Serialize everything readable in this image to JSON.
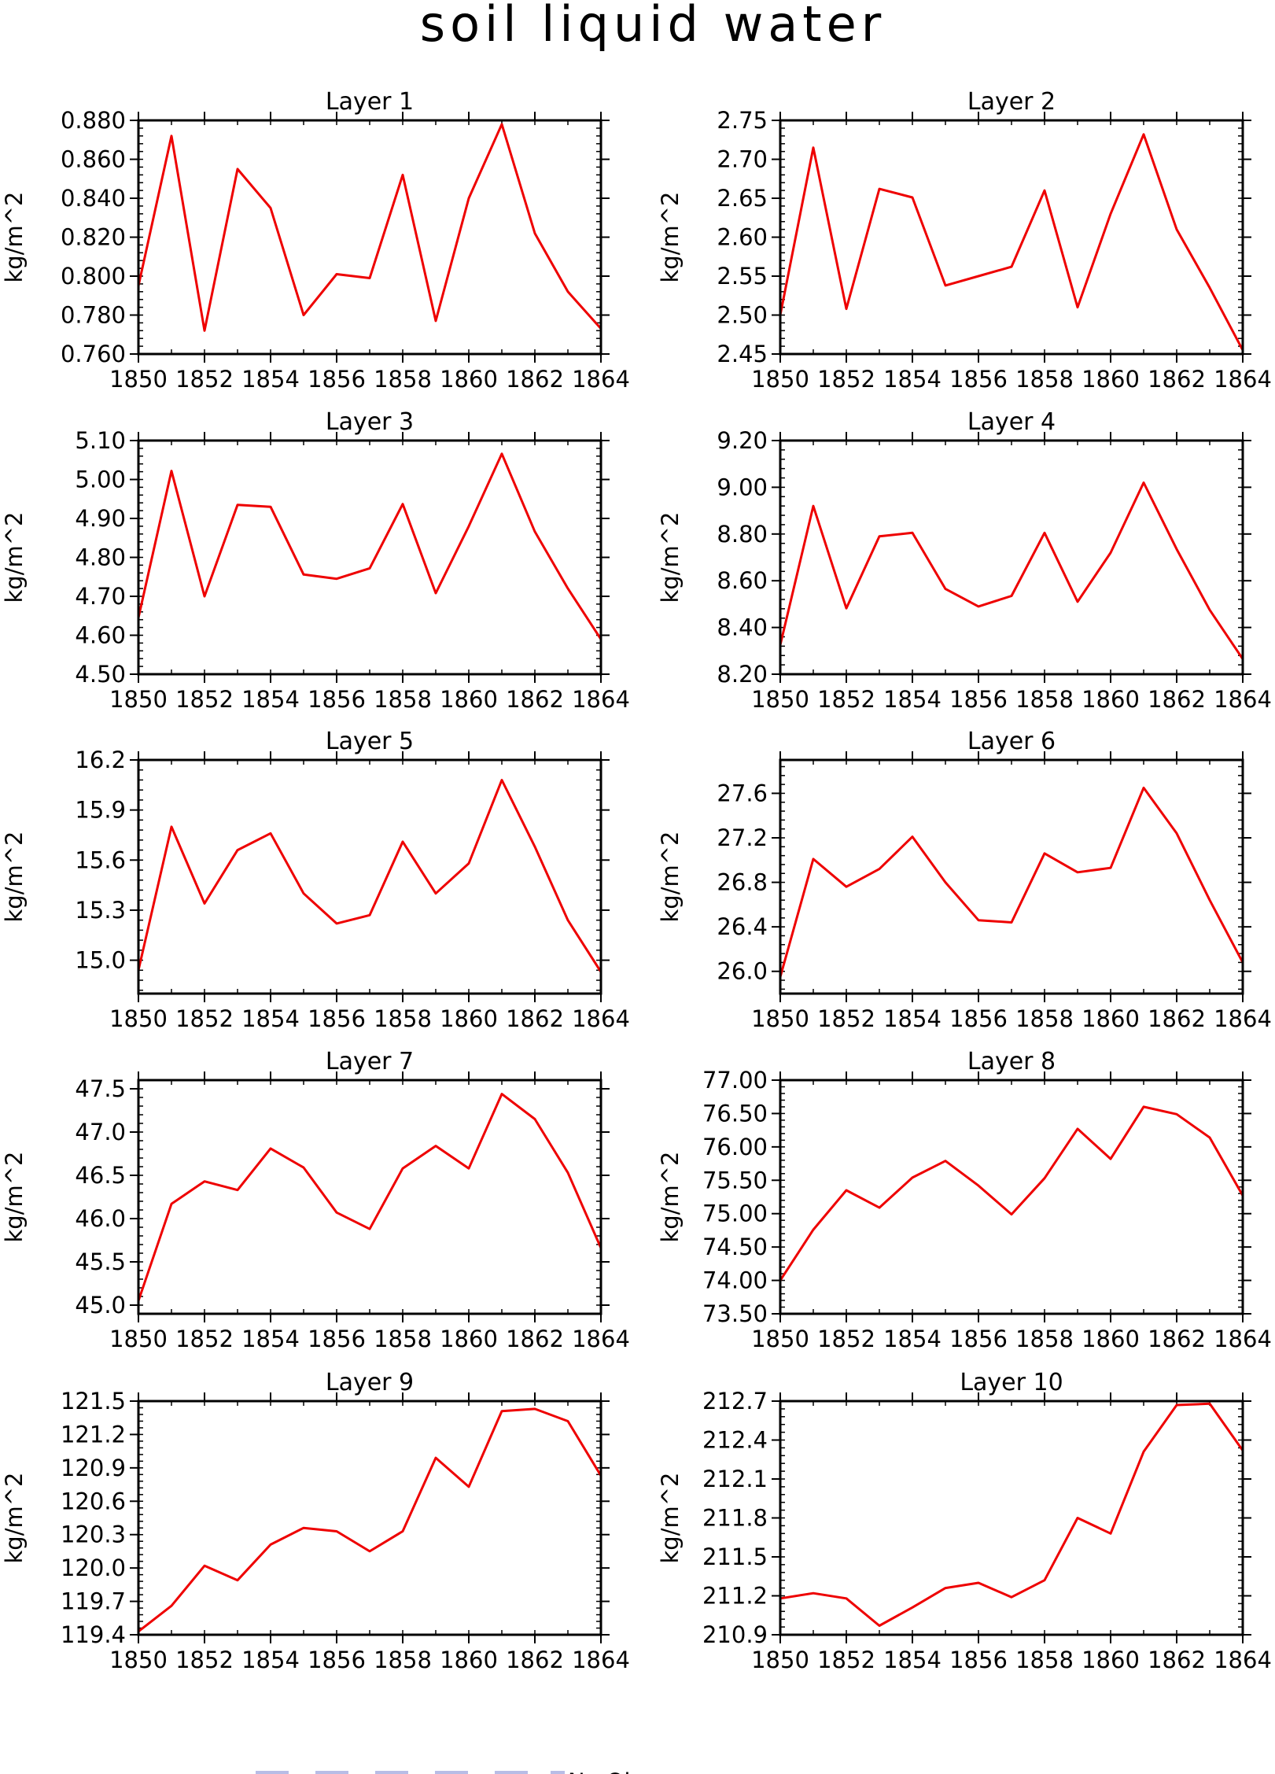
{
  "figure": {
    "title": "soil liquid water",
    "legend_label": "No Obs"
  },
  "colors": {
    "line": "#ee0000",
    "axes": "#000000",
    "legend_dash": "#b8bde6"
  },
  "chart_data": [
    {
      "type": "line",
      "title": "Layer 1",
      "xlabel": "",
      "ylabel": "kg/m^2",
      "x": [
        1850,
        1851,
        1852,
        1853,
        1854,
        1855,
        1856,
        1857,
        1858,
        1859,
        1860,
        1861,
        1862,
        1863,
        1864
      ],
      "xticks": [
        "1850",
        "1852",
        "1854",
        "1856",
        "1858",
        "1860",
        "1862",
        "1864"
      ],
      "xlim": [
        1850,
        1864
      ],
      "yticks": [
        "0.760",
        "0.780",
        "0.800",
        "0.820",
        "0.840",
        "0.860",
        "0.880"
      ],
      "ylim": [
        0.76,
        0.88
      ],
      "series": [
        {
          "values": [
            0.795,
            0.872,
            0.772,
            0.855,
            0.835,
            0.78,
            0.801,
            0.799,
            0.852,
            0.777,
            0.84,
            0.878,
            0.822,
            0.792,
            0.773
          ]
        }
      ]
    },
    {
      "type": "line",
      "title": "Layer 2",
      "xlabel": "",
      "ylabel": "kg/m^2",
      "x": [
        1850,
        1851,
        1852,
        1853,
        1854,
        1855,
        1856,
        1857,
        1858,
        1859,
        1860,
        1861,
        1862,
        1863,
        1864
      ],
      "xticks": [
        "1850",
        "1852",
        "1854",
        "1856",
        "1858",
        "1860",
        "1862",
        "1864"
      ],
      "xlim": [
        1850,
        1864
      ],
      "yticks": [
        "2.45",
        "2.50",
        "2.55",
        "2.60",
        "2.65",
        "2.70",
        "2.75"
      ],
      "ylim": [
        2.45,
        2.75
      ],
      "series": [
        {
          "values": [
            2.5,
            2.715,
            2.508,
            2.662,
            2.651,
            2.538,
            2.55,
            2.562,
            2.66,
            2.51,
            2.63,
            2.732,
            2.61,
            2.535,
            2.455
          ]
        }
      ]
    },
    {
      "type": "line",
      "title": "Layer 3",
      "xlabel": "",
      "ylabel": "kg/m^2",
      "x": [
        1850,
        1851,
        1852,
        1853,
        1854,
        1855,
        1856,
        1857,
        1858,
        1859,
        1860,
        1861,
        1862,
        1863,
        1864
      ],
      "xticks": [
        "1850",
        "1852",
        "1854",
        "1856",
        "1858",
        "1860",
        "1862",
        "1864"
      ],
      "xlim": [
        1850,
        1864
      ],
      "yticks": [
        "4.50",
        "4.60",
        "4.70",
        "4.80",
        "4.90",
        "5.00",
        "5.10"
      ],
      "ylim": [
        4.5,
        5.1
      ],
      "series": [
        {
          "values": [
            4.645,
            5.022,
            4.7,
            4.935,
            4.93,
            4.756,
            4.745,
            4.772,
            4.937,
            4.708,
            4.88,
            5.066,
            4.866,
            4.72,
            4.59
          ]
        }
      ]
    },
    {
      "type": "line",
      "title": "Layer 4",
      "xlabel": "",
      "ylabel": "kg/m^2",
      "x": [
        1850,
        1851,
        1852,
        1853,
        1854,
        1855,
        1856,
        1857,
        1858,
        1859,
        1860,
        1861,
        1862,
        1863,
        1864
      ],
      "xticks": [
        "1850",
        "1852",
        "1854",
        "1856",
        "1858",
        "1860",
        "1862",
        "1864"
      ],
      "xlim": [
        1850,
        1864
      ],
      "yticks": [
        "8.20",
        "8.40",
        "8.60",
        "8.80",
        "9.00",
        "9.20"
      ],
      "ylim": [
        8.2,
        9.2
      ],
      "series": [
        {
          "values": [
            8.325,
            8.92,
            8.482,
            8.79,
            8.805,
            8.565,
            8.49,
            8.535,
            8.805,
            8.51,
            8.72,
            9.02,
            8.735,
            8.475,
            8.265
          ]
        }
      ]
    },
    {
      "type": "line",
      "title": "Layer 5",
      "xlabel": "",
      "ylabel": "kg/m^2",
      "x": [
        1850,
        1851,
        1852,
        1853,
        1854,
        1855,
        1856,
        1857,
        1858,
        1859,
        1860,
        1861,
        1862,
        1863,
        1864
      ],
      "xticks": [
        "1850",
        "1852",
        "1854",
        "1856",
        "1858",
        "1860",
        "1862",
        "1864"
      ],
      "xlim": [
        1850,
        1864
      ],
      "yticks": [
        "15.0",
        "15.3",
        "15.6",
        "15.9",
        "16.2"
      ],
      "ylim": [
        14.8,
        16.2
      ],
      "series": [
        {
          "values": [
            14.94,
            15.8,
            15.34,
            15.66,
            15.76,
            15.4,
            15.22,
            15.27,
            15.71,
            15.4,
            15.58,
            16.08,
            15.68,
            15.24,
            14.93
          ]
        }
      ]
    },
    {
      "type": "line",
      "title": "Layer 6",
      "xlabel": "",
      "ylabel": "kg/m^2",
      "x": [
        1850,
        1851,
        1852,
        1853,
        1854,
        1855,
        1856,
        1857,
        1858,
        1859,
        1860,
        1861,
        1862,
        1863,
        1864
      ],
      "xticks": [
        "1850",
        "1852",
        "1854",
        "1856",
        "1858",
        "1860",
        "1862",
        "1864"
      ],
      "xlim": [
        1850,
        1864
      ],
      "yticks": [
        "26.0",
        "26.4",
        "26.8",
        "27.2",
        "27.6"
      ],
      "ylim": [
        25.8,
        27.9
      ],
      "series": [
        {
          "values": [
            25.95,
            27.01,
            26.76,
            26.92,
            27.21,
            26.8,
            26.46,
            26.44,
            27.06,
            26.89,
            26.93,
            27.65,
            27.24,
            26.64,
            26.08
          ]
        }
      ]
    },
    {
      "type": "line",
      "title": "Layer 7",
      "xlabel": "",
      "ylabel": "kg/m^2",
      "x": [
        1850,
        1851,
        1852,
        1853,
        1854,
        1855,
        1856,
        1857,
        1858,
        1859,
        1860,
        1861,
        1862,
        1863,
        1864
      ],
      "xticks": [
        "1850",
        "1852",
        "1854",
        "1856",
        "1858",
        "1860",
        "1862",
        "1864"
      ],
      "xlim": [
        1850,
        1864
      ],
      "yticks": [
        "45.0",
        "45.5",
        "46.0",
        "46.5",
        "47.0",
        "47.5"
      ],
      "ylim": [
        44.9,
        47.6
      ],
      "series": [
        {
          "values": [
            45.05,
            46.17,
            46.43,
            46.33,
            46.81,
            46.59,
            46.07,
            45.88,
            46.58,
            46.84,
            46.58,
            47.44,
            47.15,
            46.53,
            45.66
          ]
        }
      ]
    },
    {
      "type": "line",
      "title": "Layer 8",
      "xlabel": "",
      "ylabel": "kg/m^2",
      "x": [
        1850,
        1851,
        1852,
        1853,
        1854,
        1855,
        1856,
        1857,
        1858,
        1859,
        1860,
        1861,
        1862,
        1863,
        1864
      ],
      "xticks": [
        "1850",
        "1852",
        "1854",
        "1856",
        "1858",
        "1860",
        "1862",
        "1864"
      ],
      "xlim": [
        1850,
        1864
      ],
      "yticks": [
        "73.50",
        "74.00",
        "74.50",
        "75.00",
        "75.50",
        "76.00",
        "76.50",
        "77.00"
      ],
      "ylim": [
        73.5,
        77.0
      ],
      "series": [
        {
          "values": [
            74.0,
            74.76,
            75.35,
            75.09,
            75.54,
            75.79,
            75.42,
            74.99,
            75.53,
            76.27,
            75.82,
            76.6,
            76.49,
            76.14,
            75.27
          ]
        }
      ]
    },
    {
      "type": "line",
      "title": "Layer 9",
      "xlabel": "",
      "ylabel": "kg/m^2",
      "x": [
        1850,
        1851,
        1852,
        1853,
        1854,
        1855,
        1856,
        1857,
        1858,
        1859,
        1860,
        1861,
        1862,
        1863,
        1864
      ],
      "xticks": [
        "1850",
        "1852",
        "1854",
        "1856",
        "1858",
        "1860",
        "1862",
        "1864"
      ],
      "xlim": [
        1850,
        1864
      ],
      "yticks": [
        "119.4",
        "119.7",
        "120.0",
        "120.3",
        "120.6",
        "120.9",
        "121.2",
        "121.5"
      ],
      "ylim": [
        119.4,
        121.5
      ],
      "series": [
        {
          "values": [
            119.43,
            119.66,
            120.02,
            119.89,
            120.21,
            120.36,
            120.33,
            120.15,
            120.33,
            120.99,
            120.73,
            121.41,
            121.43,
            121.32,
            120.83
          ]
        }
      ]
    },
    {
      "type": "line",
      "title": "Layer 10",
      "xlabel": "",
      "ylabel": "kg/m^2",
      "x": [
        1850,
        1851,
        1852,
        1853,
        1854,
        1855,
        1856,
        1857,
        1858,
        1859,
        1860,
        1861,
        1862,
        1863,
        1864
      ],
      "xticks": [
        "1850",
        "1852",
        "1854",
        "1856",
        "1858",
        "1860",
        "1862",
        "1864"
      ],
      "xlim": [
        1850,
        1864
      ],
      "yticks": [
        "210.9",
        "211.2",
        "211.5",
        "211.8",
        "212.1",
        "212.4",
        "212.7"
      ],
      "ylim": [
        210.9,
        212.7
      ],
      "series": [
        {
          "values": [
            211.18,
            211.22,
            211.18,
            210.97,
            211.11,
            211.26,
            211.3,
            211.19,
            211.32,
            211.8,
            211.68,
            212.31,
            212.67,
            212.68,
            212.32
          ]
        }
      ]
    }
  ]
}
